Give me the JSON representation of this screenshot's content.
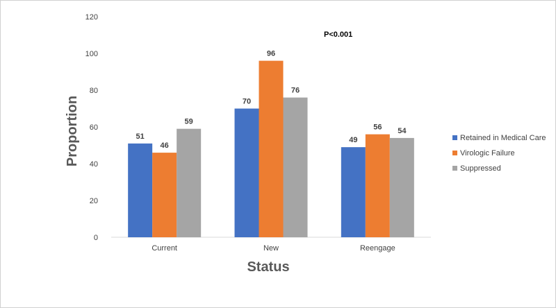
{
  "chart_data": {
    "type": "bar",
    "categories": [
      "Current",
      "New",
      "Reengage"
    ],
    "series": [
      {
        "name": "Retained in Medical Care",
        "values": [
          51,
          70,
          49
        ],
        "color": "#4472C4"
      },
      {
        "name": "Virologic Failure",
        "values": [
          46,
          96,
          56
        ],
        "color": "#ED7D31"
      },
      {
        "name": "Suppressed",
        "values": [
          59,
          76,
          54
        ],
        "color": "#A5A5A5"
      }
    ],
    "xlabel": "Status",
    "ylabel": "Proportion",
    "ylim": [
      0,
      120
    ],
    "yticks": [
      0,
      20,
      40,
      60,
      80,
      100,
      120
    ],
    "annotation": "P<0.001",
    "grid": false,
    "legend": "right"
  }
}
